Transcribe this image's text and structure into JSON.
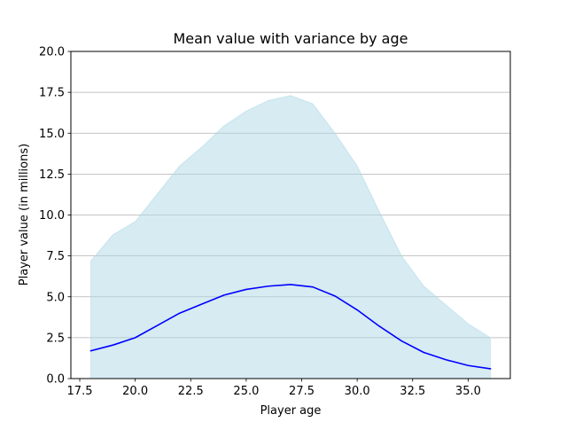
{
  "chart_data": {
    "type": "area",
    "title": "Mean value with variance by age",
    "xlabel": "Player age",
    "ylabel": "Player value (in millions)",
    "xlim": [
      17.1,
      36.9
    ],
    "ylim": [
      0,
      20
    ],
    "xticks": [
      17.5,
      20.0,
      22.5,
      25.0,
      27.5,
      30.0,
      32.5,
      35.0
    ],
    "xtick_labels": [
      "17.5",
      "20.0",
      "22.5",
      "25.0",
      "27.5",
      "30.0",
      "32.5",
      "35.0"
    ],
    "yticks": [
      0,
      2.5,
      5,
      7.5,
      10,
      12.5,
      15,
      17.5,
      20
    ],
    "ytick_labels": [
      "0.0",
      "2.5",
      "5.0",
      "7.5",
      "10.0",
      "12.5",
      "15.0",
      "17.5",
      "20.0"
    ],
    "grid": "y",
    "x": [
      18,
      19,
      20,
      21,
      22,
      23,
      24,
      25,
      26,
      27,
      28,
      29,
      30,
      31,
      32,
      33,
      34,
      35,
      36
    ],
    "series": [
      {
        "type": "line",
        "values": [
          1.7,
          2.05,
          2.5,
          3.25,
          4.0,
          4.55,
          5.1,
          5.45,
          5.65,
          5.75,
          5.6,
          5.05,
          4.2,
          3.2,
          2.3,
          1.6,
          1.15,
          0.8,
          0.6
        ],
        "color": "#0000ff"
      },
      {
        "type": "band",
        "lower": [
          0,
          0,
          0,
          0,
          0,
          0,
          0,
          0,
          0,
          0,
          0,
          0,
          0,
          0,
          0,
          0,
          0,
          0,
          0
        ],
        "upper": [
          7.2,
          8.8,
          9.6,
          11.3,
          13.0,
          14.15,
          15.45,
          16.35,
          17.0,
          17.3,
          16.8,
          15.0,
          13.0,
          10.2,
          7.5,
          5.65,
          4.5,
          3.35,
          2.5
        ],
        "color": "#add8e6",
        "alpha": 0.5
      }
    ]
  }
}
